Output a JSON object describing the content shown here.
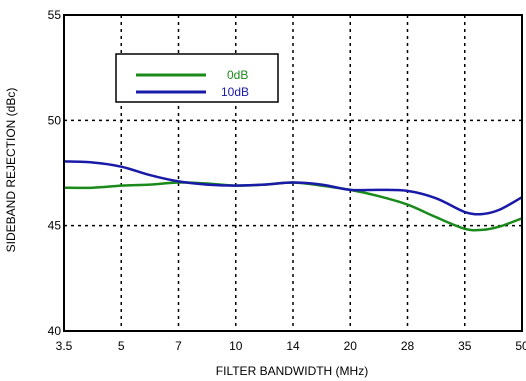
{
  "chart_data": {
    "type": "line",
    "title": "",
    "xlabel": "FILTER BANDWIDTH (MHz)",
    "ylabel": "SIDEBAND REJECTION (dBc)",
    "categories": [
      "3.5",
      "5",
      "7",
      "10",
      "14",
      "20",
      "28",
      "35",
      "50"
    ],
    "y_ticks": [
      "40",
      "45",
      "50",
      "55"
    ],
    "ylim": [
      40,
      55
    ],
    "grid": "dotted",
    "legend_position": "top-left",
    "series": [
      {
        "name": "0dB",
        "color": "#1a8a1a",
        "x": [
          0,
          0.5,
          1,
          1.5,
          2,
          2.5,
          3,
          3.5,
          4,
          4.5,
          5,
          5.5,
          6,
          6.5,
          7,
          7.3,
          7.6,
          8
        ],
        "values": [
          46.8,
          46.8,
          46.9,
          46.95,
          47.05,
          47.0,
          46.9,
          46.95,
          47.05,
          46.9,
          46.7,
          46.4,
          46.0,
          45.4,
          44.85,
          44.8,
          44.95,
          45.35
        ]
      },
      {
        "name": "10dB",
        "color": "#1a1aa8",
        "x": [
          0,
          0.5,
          1,
          1.5,
          2,
          2.5,
          3,
          3.5,
          4,
          4.5,
          5,
          5.5,
          6,
          6.5,
          7,
          7.3,
          7.6,
          8
        ],
        "values": [
          48.05,
          48.0,
          47.8,
          47.4,
          47.1,
          46.95,
          46.9,
          46.95,
          47.05,
          46.95,
          46.7,
          46.7,
          46.65,
          46.3,
          45.65,
          45.55,
          45.75,
          46.35
        ]
      }
    ]
  }
}
